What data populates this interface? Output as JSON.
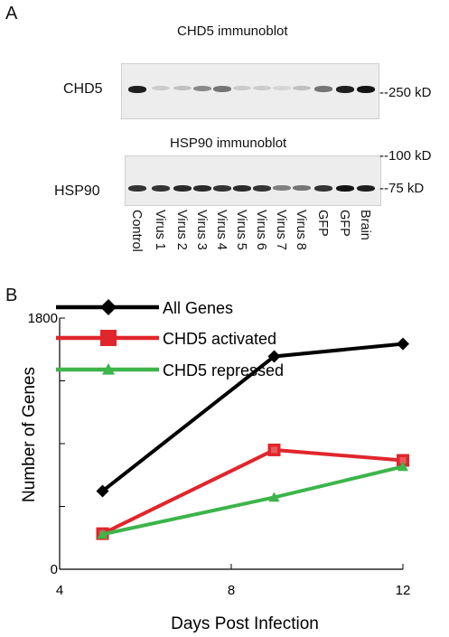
{
  "panel_a": {
    "letter": "A",
    "chd5_title": "CHD5 immunoblot",
    "chd5_label": "CHD5",
    "chd5_marker": "--250 kD",
    "hsp90_title": "HSP90 immunoblot",
    "hsp90_label": "HSP90",
    "hsp90_marker_top": "--100 kD",
    "hsp90_marker_bottom": "--75 kD",
    "lanes": [
      "Control",
      "Virus 1",
      "Virus 2",
      "Virus 3",
      "Virus 4",
      "Virus 5",
      "Virus 6",
      "Virus 7",
      "Virus 8",
      "GFP",
      "GFP",
      "Brain"
    ],
    "chd5_intensity": [
      0.95,
      0.15,
      0.2,
      0.45,
      0.55,
      0.15,
      0.15,
      0.1,
      0.2,
      0.55,
      0.95,
      1.0
    ],
    "hsp90_intensity": [
      0.85,
      0.85,
      0.9,
      0.9,
      0.85,
      0.9,
      0.85,
      0.5,
      0.55,
      0.85,
      1.0,
      0.95
    ]
  },
  "panel_b": {
    "letter": "B"
  },
  "chart_data": {
    "type": "line",
    "xlabel": "Days Post Infection",
    "ylabel": "Number of Genes",
    "xlim": [
      4,
      12
    ],
    "ylim": [
      0,
      1800
    ],
    "xticks": [
      4,
      8,
      12
    ],
    "yticks": [
      0,
      1800
    ],
    "x": [
      5,
      9,
      12
    ],
    "legend_position": "top-left",
    "series": [
      {
        "name": "All Genes",
        "values": [
          560,
          1525,
          1615
        ],
        "color": "#000000",
        "marker": "diamond"
      },
      {
        "name": "CHD5 activated",
        "values": [
          255,
          855,
          780
        ],
        "color": "#e0262c",
        "marker": "square"
      },
      {
        "name": "CHD5 repressed",
        "values": [
          250,
          515,
          735
        ],
        "color": "#3cb54a",
        "marker": "triangle"
      }
    ]
  }
}
